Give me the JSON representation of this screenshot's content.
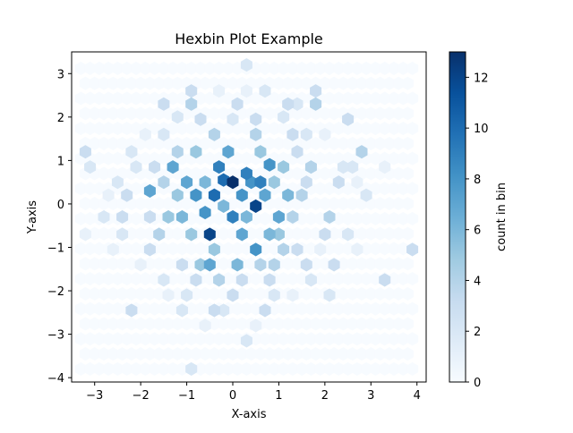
{
  "chart_data": {
    "type": "heatmap",
    "subtype": "hexbin",
    "title": "Hexbin Plot Example",
    "xlabel": "X-axis",
    "ylabel": "Y-axis",
    "xlim": [
      -3.5,
      4.2
    ],
    "ylim": [
      -4.1,
      3.5
    ],
    "xticks": [
      -3,
      -2,
      -1,
      0,
      1,
      2,
      3,
      4
    ],
    "yticks": [
      -4,
      -3,
      -2,
      -1,
      0,
      1,
      2,
      3
    ],
    "grid": false,
    "colormap": "Blues",
    "colorbar": {
      "label": "count in bin",
      "range": [
        0,
        13
      ],
      "ticks": [
        0,
        2,
        4,
        6,
        8,
        10,
        12
      ]
    },
    "hex_grid": {
      "x_min": -3.3,
      "x_max": 3.9,
      "y_min": -3.8,
      "y_max": 3.2,
      "x_spacing": 0.2,
      "y_spacing": 0.346,
      "background_count": 0
    },
    "bins": [
      {
        "x": 0,
        "y": 0.5,
        "count": 13
      },
      {
        "x": 0.5,
        "y": -0.05,
        "count": 12
      },
      {
        "x": -0.5,
        "y": -0.7,
        "count": 12
      },
      {
        "x": -0.2,
        "y": 0.55,
        "count": 10
      },
      {
        "x": -0.4,
        "y": 0.2,
        "count": 10
      },
      {
        "x": 0.3,
        "y": 0.7,
        "count": 9
      },
      {
        "x": 0.6,
        "y": 0.5,
        "count": 9
      },
      {
        "x": 0,
        "y": -0.3,
        "count": 9
      },
      {
        "x": -0.3,
        "y": 0.85,
        "count": 9
      },
      {
        "x": 0.8,
        "y": 0.9,
        "count": 8
      },
      {
        "x": 0.5,
        "y": -1.05,
        "count": 8
      },
      {
        "x": -0.6,
        "y": -0.2,
        "count": 8
      },
      {
        "x": 0.2,
        "y": 0.2,
        "count": 8
      },
      {
        "x": 0.4,
        "y": 0.5,
        "count": 8
      },
      {
        "x": -0.8,
        "y": 0.2,
        "count": 8
      },
      {
        "x": -1,
        "y": 0.5,
        "count": 7
      },
      {
        "x": -1.3,
        "y": 0.85,
        "count": 7
      },
      {
        "x": -1.8,
        "y": 0.3,
        "count": 7
      },
      {
        "x": 1,
        "y": -0.3,
        "count": 7
      },
      {
        "x": -0.5,
        "y": -1.4,
        "count": 7
      },
      {
        "x": 0.2,
        "y": -0.7,
        "count": 7
      },
      {
        "x": -0.1,
        "y": 1.2,
        "count": 7
      },
      {
        "x": 0.7,
        "y": 0.2,
        "count": 7
      },
      {
        "x": -0.2,
        "y": -0.05,
        "count": 6
      },
      {
        "x": -1.1,
        "y": -0.3,
        "count": 6
      },
      {
        "x": 0.3,
        "y": -0.3,
        "count": 6
      },
      {
        "x": 0.8,
        "y": -0.7,
        "count": 6
      },
      {
        "x": 1.2,
        "y": 0.2,
        "count": 6
      },
      {
        "x": -0.6,
        "y": 0.5,
        "count": 6
      },
      {
        "x": 0.1,
        "y": -1.4,
        "count": 6
      },
      {
        "x": 1,
        "y": -0.7,
        "count": 5
      },
      {
        "x": -1.4,
        "y": -0.3,
        "count": 5
      },
      {
        "x": -0.9,
        "y": -0.7,
        "count": 5
      },
      {
        "x": -0.4,
        "y": -1.05,
        "count": 5
      },
      {
        "x": 0.9,
        "y": 0.5,
        "count": 5
      },
      {
        "x": -0.8,
        "y": 1.2,
        "count": 5
      },
      {
        "x": 0.6,
        "y": 1.2,
        "count": 5
      },
      {
        "x": 1.1,
        "y": 0.85,
        "count": 5
      },
      {
        "x": -1.2,
        "y": 0.2,
        "count": 5
      },
      {
        "x": -0.7,
        "y": -1.4,
        "count": 5
      },
      {
        "x": 1.5,
        "y": 0.2,
        "count": 4
      },
      {
        "x": 1.3,
        "y": -0.3,
        "count": 4
      },
      {
        "x": -1.6,
        "y": -0.7,
        "count": 4
      },
      {
        "x": 0.6,
        "y": -1.4,
        "count": 4
      },
      {
        "x": 1.1,
        "y": -1.05,
        "count": 4
      },
      {
        "x": -0.4,
        "y": 1.6,
        "count": 4
      },
      {
        "x": 0.5,
        "y": 1.6,
        "count": 4
      },
      {
        "x": -1.5,
        "y": 0.5,
        "count": 4
      },
      {
        "x": 2.1,
        "y": -0.3,
        "count": 4
      },
      {
        "x": 1.7,
        "y": 0.85,
        "count": 4
      },
      {
        "x": -1.2,
        "y": 1.2,
        "count": 4
      },
      {
        "x": -0.3,
        "y": -1.75,
        "count": 4
      },
      {
        "x": 0.9,
        "y": -1.4,
        "count": 4
      },
      {
        "x": -0.9,
        "y": 2.3,
        "count": 4
      },
      {
        "x": 1.8,
        "y": 2.3,
        "count": 4
      },
      {
        "x": 2.8,
        "y": 1.2,
        "count": 4
      },
      {
        "x": 1.4,
        "y": -1.05,
        "count": 3
      },
      {
        "x": -1.8,
        "y": -0.3,
        "count": 3
      },
      {
        "x": -1.7,
        "y": 0.85,
        "count": 3
      },
      {
        "x": 1.6,
        "y": 0.5,
        "count": 3
      },
      {
        "x": -1.1,
        "y": -1.4,
        "count": 3
      },
      {
        "x": 0.2,
        "y": -1.75,
        "count": 3
      },
      {
        "x": 1.3,
        "y": 1.6,
        "count": 3
      },
      {
        "x": -0.7,
        "y": 1.95,
        "count": 3
      },
      {
        "x": 0.1,
        "y": 2.3,
        "count": 3
      },
      {
        "x": 1.2,
        "y": 2.3,
        "count": 3
      },
      {
        "x": -1.5,
        "y": 2.3,
        "count": 3
      },
      {
        "x": 1.4,
        "y": 1.2,
        "count": 3
      },
      {
        "x": 2.3,
        "y": 0.5,
        "count": 3
      },
      {
        "x": -2.3,
        "y": 0.2,
        "count": 3
      },
      {
        "x": 0.5,
        "y": 1.95,
        "count": 3
      },
      {
        "x": -0.8,
        "y": -1.75,
        "count": 3
      },
      {
        "x": 0.8,
        "y": -1.75,
        "count": 3
      },
      {
        "x": 1.6,
        "y": -1.4,
        "count": 3
      },
      {
        "x": 2.2,
        "y": -1.4,
        "count": 3
      },
      {
        "x": -1.8,
        "y": -1.05,
        "count": 3
      },
      {
        "x": -2.2,
        "y": -2.45,
        "count": 3
      },
      {
        "x": 0,
        "y": -2.1,
        "count": 3
      },
      {
        "x": 0.7,
        "y": -2.45,
        "count": 3
      },
      {
        "x": -0.4,
        "y": -2.45,
        "count": 3
      },
      {
        "x": -0.9,
        "y": 2.6,
        "count": 3
      },
      {
        "x": 1.8,
        "y": 2.6,
        "count": 3
      },
      {
        "x": 2.5,
        "y": 1.95,
        "count": 3
      },
      {
        "x": 3.9,
        "y": -1.05,
        "count": 3
      },
      {
        "x": 3.3,
        "y": -1.75,
        "count": 3
      },
      {
        "x": -3.2,
        "y": 1.2,
        "count": 3
      },
      {
        "x": 2,
        "y": -0.7,
        "count": 3
      },
      {
        "x": -2.4,
        "y": -0.3,
        "count": 3
      },
      {
        "x": -2.4,
        "y": -0.7,
        "count": 2
      },
      {
        "x": 2.5,
        "y": -0.7,
        "count": 2
      },
      {
        "x": 2.6,
        "y": 0.85,
        "count": 2
      },
      {
        "x": -2.1,
        "y": 0.85,
        "count": 2
      },
      {
        "x": -2.5,
        "y": 0.5,
        "count": 2
      },
      {
        "x": 2.4,
        "y": 0.85,
        "count": 2
      },
      {
        "x": -1.5,
        "y": 1.6,
        "count": 2
      },
      {
        "x": 1.6,
        "y": 1.6,
        "count": 2
      },
      {
        "x": -1,
        "y": -2.1,
        "count": 2
      },
      {
        "x": 0.9,
        "y": -2.1,
        "count": 2
      },
      {
        "x": -0.2,
        "y": -2.45,
        "count": 2
      },
      {
        "x": 0.3,
        "y": -3.15,
        "count": 2
      },
      {
        "x": -0.9,
        "y": -3.8,
        "count": 2
      },
      {
        "x": 0.3,
        "y": 3.2,
        "count": 2
      },
      {
        "x": 0.7,
        "y": 2.6,
        "count": 2
      },
      {
        "x": 1.4,
        "y": 2.3,
        "count": 2
      },
      {
        "x": -1.5,
        "y": -1.75,
        "count": 2
      },
      {
        "x": 1.7,
        "y": -1.75,
        "count": 2
      },
      {
        "x": 2.1,
        "y": -2.1,
        "count": 2
      },
      {
        "x": -1.1,
        "y": -2.45,
        "count": 2
      },
      {
        "x": 0,
        "y": 1.95,
        "count": 2
      },
      {
        "x": -2.2,
        "y": 1.2,
        "count": 2
      },
      {
        "x": 2.9,
        "y": 0.2,
        "count": 2
      },
      {
        "x": -2.8,
        "y": -0.3,
        "count": 2
      },
      {
        "x": -3.1,
        "y": 0.85,
        "count": 2
      },
      {
        "x": -1.2,
        "y": 2.0,
        "count": 2
      },
      {
        "x": 1.1,
        "y": 2.0,
        "count": 2
      },
      {
        "x": 2.7,
        "y": 0.5,
        "count": 1
      },
      {
        "x": -2.7,
        "y": 0.2,
        "count": 1
      },
      {
        "x": 2.7,
        "y": -1.05,
        "count": 1
      },
      {
        "x": -2.6,
        "y": -1.05,
        "count": 1
      },
      {
        "x": -2.0,
        "y": -1.4,
        "count": 1
      },
      {
        "x": 1.9,
        "y": -1.05,
        "count": 1
      },
      {
        "x": -1.9,
        "y": 1.6,
        "count": 1
      },
      {
        "x": 2.0,
        "y": 1.6,
        "count": 1
      },
      {
        "x": -0.3,
        "y": 2.6,
        "count": 1
      },
      {
        "x": 0.3,
        "y": 2.6,
        "count": 1
      },
      {
        "x": -0.6,
        "y": -2.8,
        "count": 1
      },
      {
        "x": 0.5,
        "y": -2.8,
        "count": 1
      },
      {
        "x": -1.4,
        "y": -2.1,
        "count": 1
      },
      {
        "x": 1.3,
        "y": -2.1,
        "count": 1
      },
      {
        "x": 3.3,
        "y": 0.85,
        "count": 1
      },
      {
        "x": -3.2,
        "y": -0.7,
        "count": 1
      }
    ]
  }
}
